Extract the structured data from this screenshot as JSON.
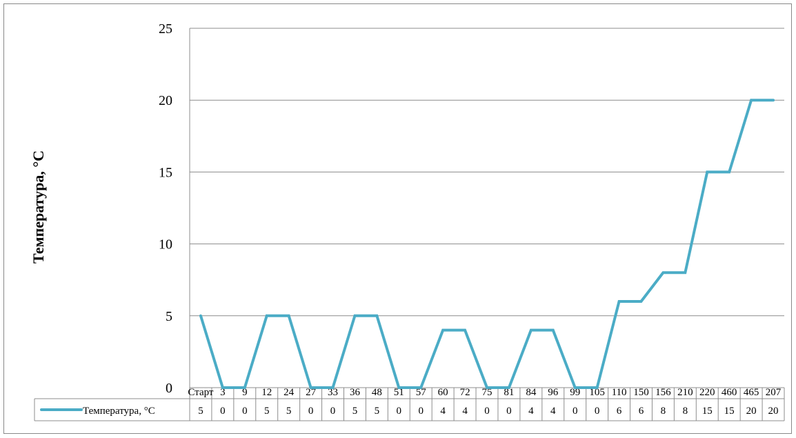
{
  "chart_data": {
    "type": "line",
    "title": "",
    "xlabel": "",
    "ylabel": "Температура, °С",
    "ylim": [
      0,
      25
    ],
    "yticks": [
      0,
      5,
      10,
      15,
      20,
      25
    ],
    "grid": true,
    "legend": "data-table-left",
    "categories": [
      "Старт",
      "3",
      "9",
      "12",
      "24",
      "27",
      "33",
      "36",
      "48",
      "51",
      "57",
      "60",
      "72",
      "75",
      "81",
      "84",
      "96",
      "99",
      "105",
      "110",
      "150",
      "156",
      "210",
      "220",
      "460",
      "465",
      "207"
    ],
    "series": [
      {
        "name": "Температура, °С",
        "color": "#4BACC6",
        "values": [
          5,
          0,
          0,
          5,
          5,
          0,
          0,
          5,
          5,
          0,
          0,
          4,
          4,
          0,
          0,
          4,
          4,
          0,
          0,
          6,
          6,
          8,
          8,
          15,
          15,
          20,
          20
        ]
      }
    ]
  }
}
